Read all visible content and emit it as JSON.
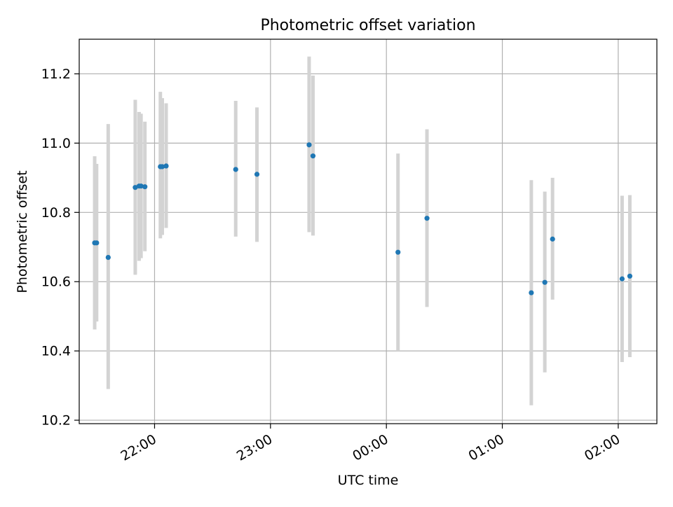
{
  "chart_data": {
    "type": "scatter",
    "title": "Photometric offset variation",
    "xlabel": "UTC time",
    "ylabel": "Photometric offset",
    "xlim": [
      "21:21",
      "02:20"
    ],
    "ylim": [
      10.19,
      11.3
    ],
    "x_ticks": [
      {
        "label": "22:00",
        "time": "22:00"
      },
      {
        "label": "23:00",
        "time": "23:00"
      },
      {
        "label": "00:00",
        "time": "00:00"
      },
      {
        "label": "01:00",
        "time": "01:00"
      },
      {
        "label": "02:00",
        "time": "02:00"
      }
    ],
    "y_ticks": [
      10.2,
      10.4,
      10.6,
      10.8,
      11.0,
      11.2
    ],
    "y_tick_labels": [
      "10.2",
      "10.4",
      "10.6",
      "10.8",
      "11.0",
      "11.2"
    ],
    "grid": true,
    "colors": {
      "marker": "#1f77b4",
      "errorbar": "#d3d3d3",
      "grid": "#b0b0b0"
    },
    "points": [
      {
        "time": "21:29",
        "y": 10.712,
        "ylow": 10.462,
        "yhigh": 10.962
      },
      {
        "time": "21:30",
        "y": 10.712,
        "ylow": 10.485,
        "yhigh": 10.94
      },
      {
        "time": "21:36",
        "y": 10.67,
        "ylow": 10.29,
        "yhigh": 11.055
      },
      {
        "time": "21:50",
        "y": 10.872,
        "ylow": 10.62,
        "yhigh": 11.125
      },
      {
        "time": "21:52",
        "y": 10.876,
        "ylow": 10.66,
        "yhigh": 11.09
      },
      {
        "time": "21:53",
        "y": 10.876,
        "ylow": 10.668,
        "yhigh": 11.085
      },
      {
        "time": "21:55",
        "y": 10.874,
        "ylow": 10.688,
        "yhigh": 11.062
      },
      {
        "time": "22:03",
        "y": 10.932,
        "ylow": 10.725,
        "yhigh": 11.148
      },
      {
        "time": "22:04",
        "y": 10.932,
        "ylow": 10.735,
        "yhigh": 11.13
      },
      {
        "time": "22:06",
        "y": 10.934,
        "ylow": 10.755,
        "yhigh": 11.115
      },
      {
        "time": "22:42",
        "y": 10.924,
        "ylow": 10.73,
        "yhigh": 11.122
      },
      {
        "time": "22:53",
        "y": 10.91,
        "ylow": 10.715,
        "yhigh": 11.103
      },
      {
        "time": "23:20",
        "y": 10.995,
        "ylow": 10.743,
        "yhigh": 11.25
      },
      {
        "time": "23:22",
        "y": 10.963,
        "ylow": 10.733,
        "yhigh": 11.195
      },
      {
        "time": "00:06",
        "y": 10.685,
        "ylow": 10.4,
        "yhigh": 10.97
      },
      {
        "time": "00:21",
        "y": 10.783,
        "ylow": 10.527,
        "yhigh": 11.04
      },
      {
        "time": "01:15",
        "y": 10.568,
        "ylow": 10.243,
        "yhigh": 10.893
      },
      {
        "time": "01:22",
        "y": 10.598,
        "ylow": 10.338,
        "yhigh": 10.86
      },
      {
        "time": "01:26",
        "y": 10.723,
        "ylow": 10.548,
        "yhigh": 10.9
      },
      {
        "time": "02:02",
        "y": 10.608,
        "ylow": 10.368,
        "yhigh": 10.848
      },
      {
        "time": "02:06",
        "y": 10.616,
        "ylow": 10.382,
        "yhigh": 10.85
      }
    ]
  }
}
